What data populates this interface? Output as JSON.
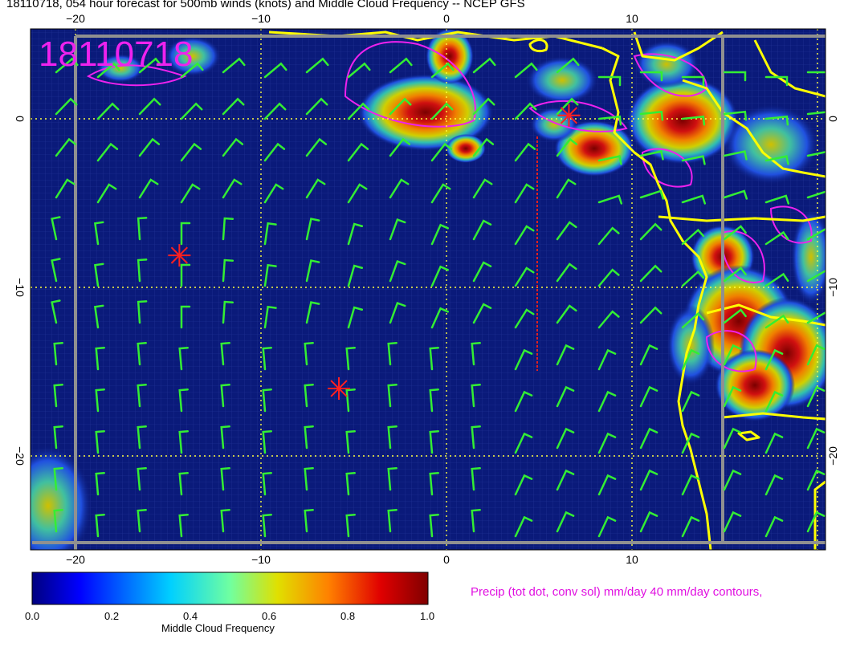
{
  "title": "18110718, 054 hour forecast for 500mb winds (knots) and Middle Cloud Frequency -- NCEP GFS",
  "date_stamp": "18110718",
  "map": {
    "lon_ticks": [
      "−20",
      "−10",
      "0",
      "10"
    ],
    "lat_ticks": [
      "0",
      "−10",
      "−20"
    ],
    "lon_range": [
      -22.5,
      20.3
    ],
    "lat_range": [
      -25.5,
      5.1
    ],
    "ocean_color": "#0a1a7a",
    "coast_color": "#ffff00",
    "barb_color": "#33ee33",
    "precip_color": "#ee22ee",
    "marker_color": "#ff2020"
  },
  "colorbar": {
    "label": "Middle Cloud Frequency",
    "ticks": [
      "0.0",
      "0.2",
      "0.4",
      "0.6",
      "0.8",
      "1.0"
    ]
  },
  "precip_caption": "Precip (tot dot, conv sol) mm/day 40 mm/day contours,",
  "markers": [
    {
      "lon": -14.4,
      "lat": -8.1
    },
    {
      "lon": -5.8,
      "lat": -16.0
    },
    {
      "lon": 6.6,
      "lat": 0.2
    }
  ]
}
